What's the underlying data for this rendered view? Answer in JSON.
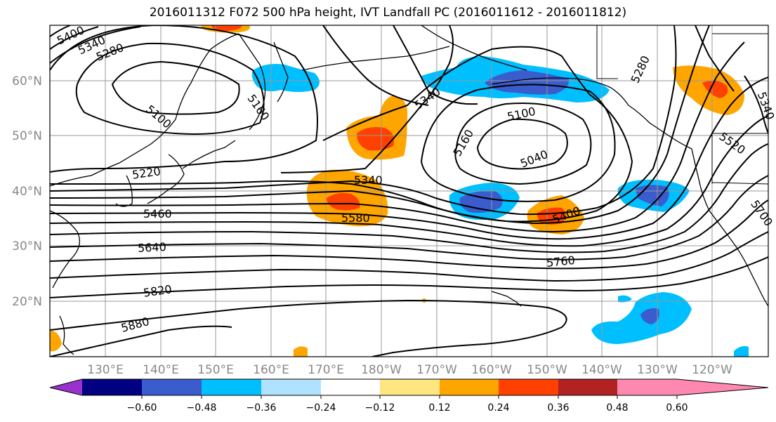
{
  "title": "2016011312 F072 500 hPa height, IVT Landfall PC (2016011612 - 2016011812)",
  "map": {
    "lon_labels": [
      "130°E",
      "140°E",
      "150°E",
      "160°E",
      "170°E",
      "180°W",
      "170°W",
      "160°W",
      "150°W",
      "140°W",
      "130°W",
      "120°W"
    ],
    "lat_labels": [
      "60°N",
      "50°N",
      "40°N",
      "30°N",
      "20°N"
    ],
    "contour_labels": [
      "5400",
      "5340",
      "5280",
      "5100",
      "5160",
      "5220",
      "5460",
      "5640",
      "5820",
      "5880",
      "5340",
      "5580",
      "5340",
      "5160",
      "5100",
      "5040",
      "5400",
      "5760",
      "5280",
      "5340",
      "5520",
      "5700"
    ]
  },
  "colorbar": {
    "colors": [
      "#9932cc",
      "#000080",
      "#3a5ccc",
      "#00bfff",
      "#b0e2ff",
      "#ffffff",
      "#ffe680",
      "#ffa500",
      "#ff4000",
      "#b22222",
      "#ff88b0"
    ],
    "tick_labels": [
      "−0.60",
      "−0.48",
      "−0.36",
      "−0.24",
      "−0.12",
      "0.12",
      "0.24",
      "0.36",
      "0.48",
      "0.60"
    ]
  }
}
